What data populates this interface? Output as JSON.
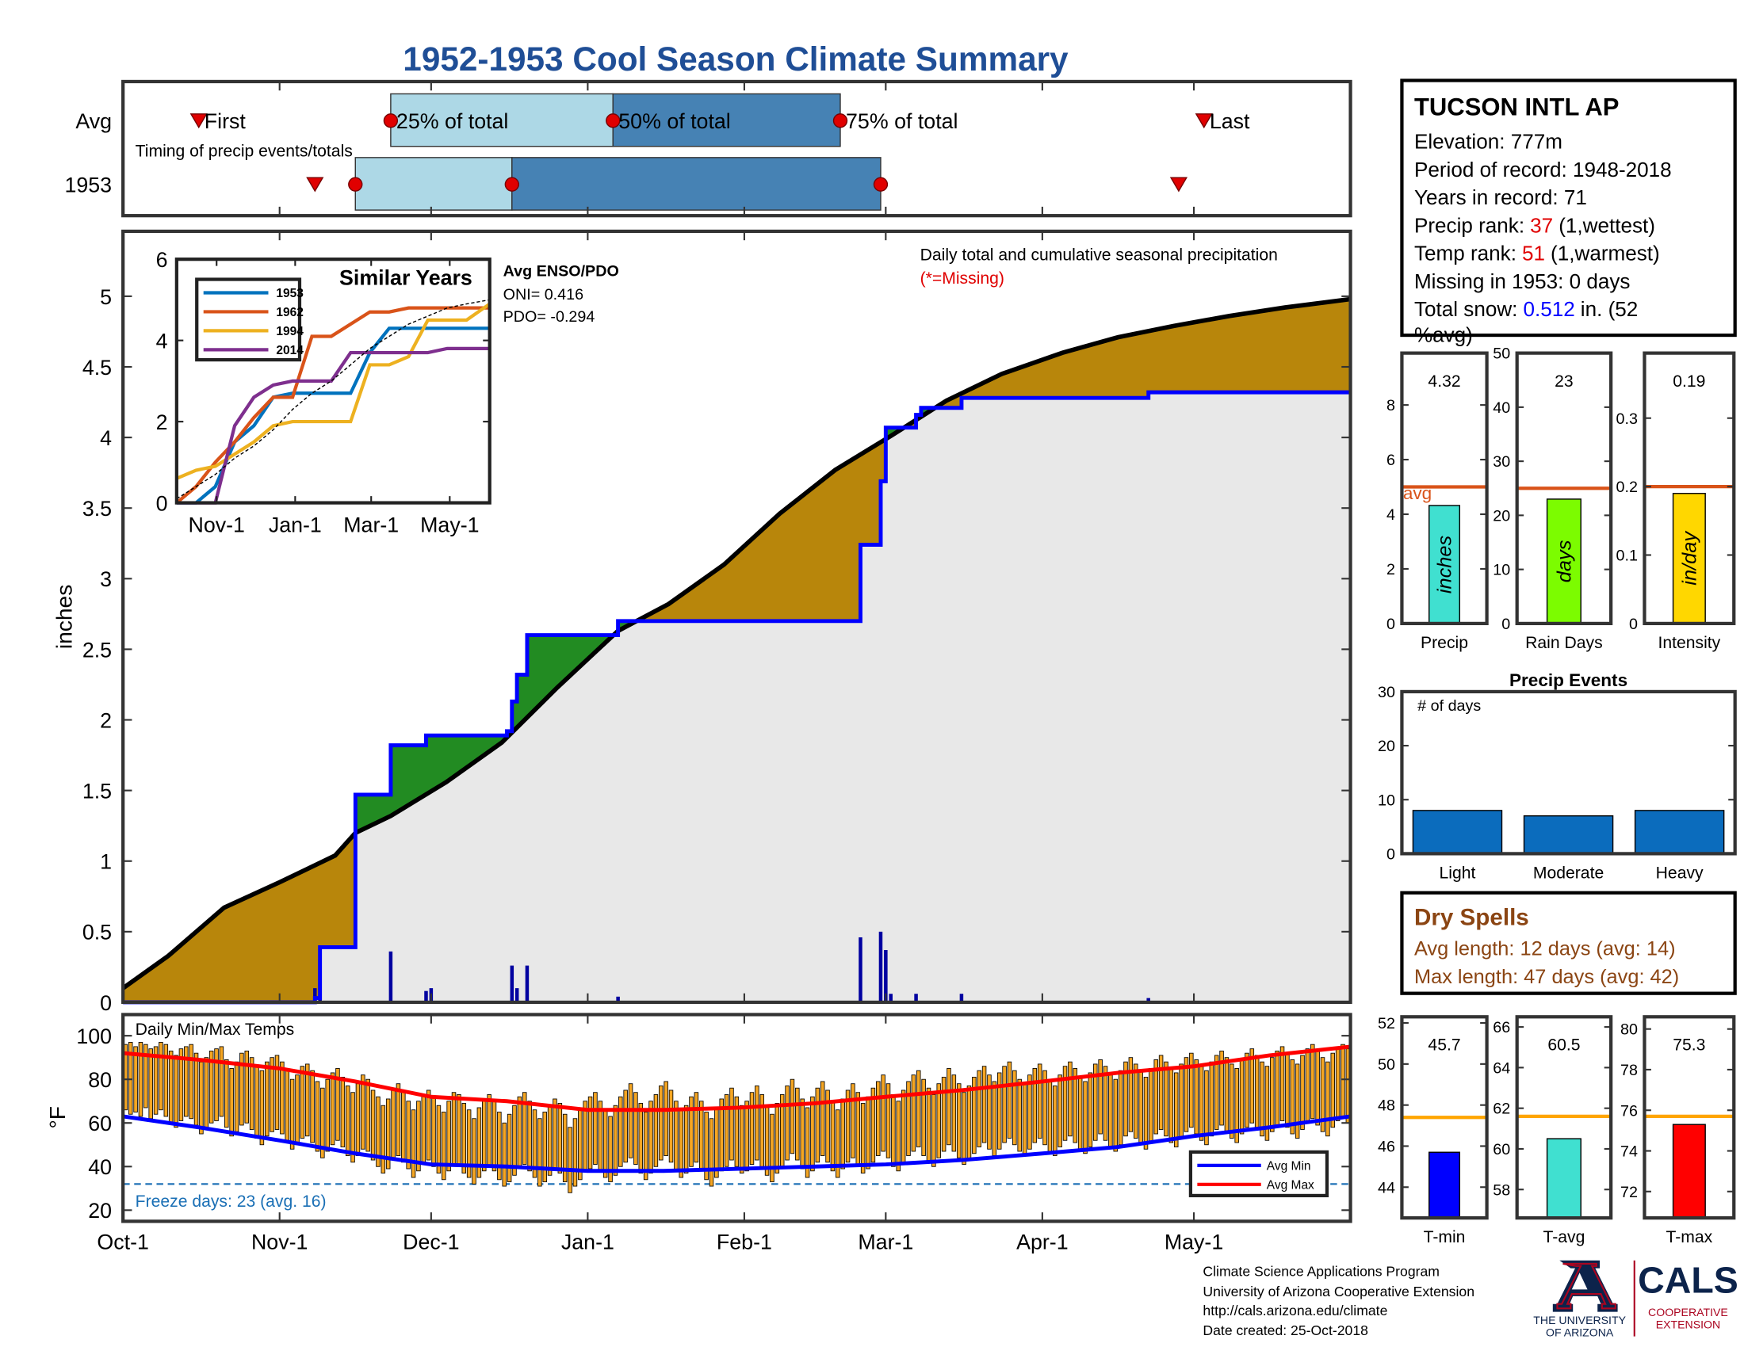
{
  "title": "1952-1953 Cool Season Climate Summary",
  "chart_data": [
    {
      "type": "timing",
      "xlim": [
        0,
        243
      ],
      "note": "Timing of precip events/totals",
      "marker_labels": {
        "first": "First",
        "p25": "25% of total",
        "p50": "50% of total",
        "p75": "75% of total",
        "last": "Last"
      },
      "rows": [
        {
          "label": "Avg",
          "first": 15,
          "p25": 53,
          "p50": 97,
          "p75": 142,
          "last": 214
        },
        {
          "label": "1953",
          "first": 38,
          "p25": 46,
          "p50": 77,
          "p75": 150,
          "last": 209
        }
      ]
    },
    {
      "type": "cumulative",
      "ylabel": "inches",
      "xlim": [
        0,
        243
      ],
      "ylim": [
        0,
        5.46
      ],
      "yticks": [
        0,
        0.5,
        1,
        1.5,
        2,
        2.5,
        3,
        3.5,
        4,
        4.5,
        5
      ],
      "annotation": "Daily total and cumulative seasonal precipitation",
      "missing_note": "(*=Missing)",
      "avg_cumulative": {
        "color": "#000000",
        "x": [
          0,
          9,
          20,
          31,
          42,
          46,
          53,
          64,
          75,
          86,
          98,
          108,
          119,
          130,
          141,
          152,
          163,
          174,
          186,
          197,
          208,
          219,
          230,
          243
        ],
        "values": [
          0.1,
          0.33,
          0.67,
          0.85,
          1.04,
          1.2,
          1.32,
          1.56,
          1.84,
          2.23,
          2.63,
          2.82,
          3.1,
          3.46,
          3.77,
          4.01,
          4.26,
          4.45,
          4.6,
          4.71,
          4.79,
          4.86,
          4.92,
          4.98
        ]
      },
      "cumulative_1953": {
        "color": "#0000ff",
        "x": [
          0,
          38,
          39,
          46,
          53,
          60,
          76,
          77,
          78,
          80,
          98,
          146,
          150,
          151,
          157,
          158,
          166,
          203
        ],
        "values": [
          0,
          0.03,
          0.39,
          1.47,
          1.82,
          1.89,
          1.92,
          2.13,
          2.32,
          2.6,
          2.7,
          3.24,
          3.69,
          4.07,
          4.16,
          4.21,
          4.28,
          4.32
        ]
      },
      "daily": {
        "color": "#0000a0",
        "x": [
          38,
          39,
          53,
          60,
          61,
          77,
          78,
          80,
          98,
          146,
          150,
          151,
          152,
          157,
          166,
          203
        ],
        "values": [
          0.1,
          0.3,
          0.36,
          0.08,
          0.1,
          0.26,
          0.1,
          0.26,
          0.04,
          0.46,
          0.5,
          0.37,
          0.06,
          0.06,
          0.06,
          0.03
        ]
      },
      "above_color": "#228b22",
      "below_color": "#b8860b",
      "base_color": "#e8e8e8"
    },
    {
      "type": "line",
      "title": "Similar Years",
      "xlim": [
        0,
        243
      ],
      "ylim": [
        0,
        6
      ],
      "yticks": [
        0,
        2,
        4,
        6
      ],
      "xticks": [
        {
          "value": 31,
          "label": "Nov-1"
        },
        {
          "value": 92,
          "label": "Jan-1"
        },
        {
          "value": 151,
          "label": "Mar-1"
        },
        {
          "value": 212,
          "label": "May-1"
        }
      ],
      "x": [
        0,
        15,
        30,
        45,
        60,
        75,
        90,
        105,
        120,
        135,
        150,
        165,
        180,
        195,
        210,
        225,
        243
      ],
      "series": [
        {
          "name": "1953",
          "color": "#0072bd",
          "values": [
            0,
            0,
            0.4,
            1.5,
            1.9,
            2.6,
            2.7,
            2.7,
            2.7,
            2.7,
            3.7,
            4.3,
            4.3,
            4.3,
            4.3,
            4.3,
            4.3
          ]
        },
        {
          "name": "1962",
          "color": "#d95319",
          "values": [
            0,
            0.4,
            1,
            1.5,
            2.1,
            2.6,
            2.6,
            4.1,
            4.1,
            4.4,
            4.7,
            4.7,
            4.8,
            4.8,
            4.8,
            4.8,
            4.8
          ]
        },
        {
          "name": "1994",
          "color": "#edb120",
          "values": [
            0.6,
            0.8,
            0.9,
            1.2,
            1.5,
            1.9,
            2,
            2,
            2,
            2,
            3.4,
            3.4,
            3.6,
            4.5,
            4.5,
            4.5,
            4.9
          ]
        },
        {
          "name": "2014",
          "color": "#7e2f8e",
          "values": [
            0,
            0,
            0,
            1.9,
            2.6,
            2.9,
            3,
            3,
            3,
            3.7,
            3.7,
            3.7,
            3.7,
            3.7,
            3.8,
            3.8,
            3.8
          ]
        }
      ],
      "avg_values": [
        0.1,
        0.4,
        0.7,
        1.1,
        1.4,
        1.8,
        2.3,
        2.7,
        3,
        3.4,
        3.8,
        4.1,
        4.4,
        4.6,
        4.8,
        4.9,
        5
      ],
      "enso": {
        "title": "Avg ENSO/PDO",
        "oni": "ONI= 0.416",
        "pdo": "PDO= -0.294"
      }
    },
    {
      "type": "temperature",
      "title": "Daily Min/Max Temps",
      "ylabel": "°F",
      "xlim": [
        0,
        243
      ],
      "ylim": [
        14.9,
        109.7
      ],
      "yticks": [
        20,
        40,
        60,
        80,
        100
      ],
      "xticks": [
        {
          "value": 0,
          "label": "Oct-1"
        },
        {
          "value": 31,
          "label": "Nov-1"
        },
        {
          "value": 61,
          "label": "Dec-1"
        },
        {
          "value": 92,
          "label": "Jan-1"
        },
        {
          "value": 123,
          "label": "Feb-1"
        },
        {
          "value": 151,
          "label": "Mar-1"
        },
        {
          "value": 182,
          "label": "Apr-1"
        },
        {
          "value": 212,
          "label": "May-1"
        }
      ],
      "bar_color": "#f5a623",
      "max": [
        96,
        97,
        95,
        97,
        96,
        94,
        95,
        97,
        96,
        93,
        91,
        94,
        95,
        96,
        92,
        88,
        90,
        93,
        94,
        95,
        89,
        85,
        88,
        92,
        93,
        90,
        86,
        84,
        88,
        90,
        91,
        88,
        85,
        80,
        82,
        86,
        87,
        84,
        79,
        76,
        80,
        83,
        85,
        81,
        77,
        74,
        78,
        82,
        80,
        75,
        72,
        68,
        71,
        76,
        78,
        74,
        70,
        66,
        70,
        73,
        75,
        72,
        68,
        65,
        70,
        74,
        73,
        69,
        66,
        62,
        67,
        71,
        73,
        70,
        65,
        60,
        64,
        68,
        72,
        74,
        70,
        66,
        62,
        65,
        68,
        71,
        69,
        64,
        58,
        62,
        66,
        70,
        72,
        74,
        70,
        66,
        63,
        68,
        72,
        75,
        78,
        74,
        69,
        65,
        70,
        73,
        77,
        79,
        75,
        70,
        66,
        68,
        72,
        74,
        70,
        65,
        62,
        67,
        71,
        73,
        76,
        72,
        68,
        70,
        74,
        77,
        73,
        68,
        64,
        69,
        73,
        77,
        80,
        76,
        71,
        67,
        72,
        76,
        79,
        75,
        70,
        66,
        71,
        75,
        78,
        74,
        69,
        72,
        76,
        79,
        82,
        78,
        73,
        70,
        75,
        79,
        82,
        84,
        80,
        76,
        73,
        78,
        81,
        85,
        82,
        78,
        74,
        77,
        81,
        84,
        86,
        82,
        79,
        83,
        86,
        88,
        84,
        80,
        78,
        82,
        85,
        87,
        84,
        80,
        77,
        82,
        86,
        88,
        85,
        81,
        79,
        83,
        87,
        89,
        86,
        82,
        80,
        84,
        88,
        90,
        87,
        84,
        81,
        85,
        89,
        91,
        88,
        85,
        83,
        87,
        90,
        92,
        89,
        86,
        84,
        88,
        91,
        93,
        90,
        87,
        85,
        89,
        92,
        94,
        91,
        88,
        86,
        90,
        93,
        95,
        92,
        89,
        87,
        91,
        94,
        96,
        93,
        90,
        88,
        92,
        95,
        96,
        94
      ],
      "min": [
        66,
        64,
        65,
        63,
        67,
        62,
        64,
        66,
        63,
        60,
        58,
        61,
        63,
        62,
        59,
        55,
        57,
        60,
        61,
        63,
        58,
        54,
        56,
        59,
        60,
        57,
        53,
        50,
        54,
        56,
        57,
        55,
        52,
        48,
        50,
        53,
        54,
        51,
        47,
        44,
        47,
        50,
        52,
        49,
        45,
        42,
        45,
        48,
        47,
        43,
        40,
        37,
        39,
        43,
        45,
        42,
        39,
        35,
        38,
        41,
        43,
        40,
        37,
        34,
        38,
        41,
        40,
        37,
        35,
        32,
        35,
        38,
        40,
        38,
        34,
        31,
        33,
        36,
        39,
        41,
        38,
        35,
        31,
        33,
        36,
        39,
        37,
        33,
        28,
        31,
        34,
        38,
        39,
        41,
        38,
        35,
        33,
        36,
        40,
        42,
        44,
        41,
        37,
        34,
        37,
        40,
        43,
        45,
        42,
        38,
        35,
        37,
        40,
        42,
        38,
        34,
        31,
        35,
        38,
        40,
        43,
        40,
        37,
        38,
        41,
        43,
        40,
        36,
        33,
        37,
        40,
        43,
        46,
        43,
        39,
        35,
        38,
        42,
        45,
        42,
        38,
        35,
        39,
        42,
        44,
        41,
        37,
        39,
        42,
        45,
        47,
        44,
        40,
        38,
        42,
        45,
        47,
        49,
        45,
        42,
        40,
        44,
        47,
        50,
        47,
        44,
        41,
        43,
        46,
        49,
        51,
        48,
        45,
        48,
        51,
        53,
        50,
        47,
        45,
        48,
        51,
        53,
        50,
        47,
        45,
        49,
        52,
        54,
        51,
        48,
        46,
        49,
        52,
        55,
        52,
        49,
        47,
        50,
        54,
        56,
        53,
        50,
        48,
        51,
        55,
        57,
        54,
        51,
        49,
        53,
        56,
        58,
        55,
        52,
        50,
        54,
        57,
        59,
        56,
        53,
        51,
        55,
        58,
        60,
        57,
        54,
        52,
        56,
        59,
        61,
        58,
        55,
        53,
        57,
        60,
        62,
        59,
        56,
        54,
        58,
        61,
        63,
        60
      ],
      "avg_x": [
        0,
        15,
        31,
        46,
        61,
        76,
        92,
        107,
        122,
        137,
        151,
        166,
        182,
        197,
        212,
        227,
        243
      ],
      "series": [
        {
          "name": "Avg Min",
          "color": "#0000ff",
          "values": [
            63,
            58,
            52,
            46,
            41,
            40,
            38,
            38,
            39,
            40,
            41,
            43,
            46,
            49,
            54,
            58,
            63
          ]
        },
        {
          "name": "Avg Max",
          "color": "#ff0000",
          "values": [
            92,
            89,
            85,
            79,
            72,
            70,
            66,
            66,
            67,
            69,
            72,
            75,
            79,
            83,
            86,
            91,
            95
          ]
        }
      ],
      "freeze": 32,
      "freeze_color": "#1a6fb5",
      "freeze_label": "Freeze days: 23 (avg. 16)"
    },
    {
      "type": "bar",
      "categories": [
        "Precip"
      ],
      "values": [
        4.32
      ],
      "color": "#40e0d0",
      "average": 5.0,
      "average_color": "#d95319",
      "average_label": "avg",
      "unit_label": "inches",
      "ylim": [
        0,
        9.9
      ],
      "yticks": [
        0,
        2,
        4,
        6,
        8
      ]
    },
    {
      "type": "bar",
      "categories": [
        "Rain Days"
      ],
      "values": [
        23
      ],
      "color": "#7cfc00",
      "average": 25,
      "average_color": "#d95319",
      "unit_label": "days",
      "ylim": [
        0,
        50
      ],
      "yticks": [
        0,
        10,
        20,
        30,
        40,
        50
      ]
    },
    {
      "type": "bar",
      "categories": [
        "Intensity"
      ],
      "values": [
        0.19
      ],
      "color": "#ffd700",
      "average": 0.2,
      "average_color": "#d95319",
      "unit_label": "in/day",
      "ylim": [
        0,
        0.395
      ],
      "yticks": [
        0,
        0.1,
        0.2,
        0.3
      ]
    },
    {
      "type": "bar",
      "title": "Precip Events",
      "ylabel": "# of days",
      "categories": [
        "Light",
        "Moderate",
        "Heavy"
      ],
      "values": [
        8,
        7,
        8
      ],
      "color": "#0b6cbd",
      "ylim": [
        0,
        30
      ],
      "yticks": [
        0,
        10,
        20,
        30
      ]
    },
    {
      "type": "bar",
      "categories": [
        "T-min"
      ],
      "values": [
        45.7
      ],
      "color": "#0000ff",
      "average": 47.4,
      "average_color": "#ffa500",
      "ylim": [
        42.5,
        52.3
      ],
      "yticks": [
        44,
        46,
        48,
        50,
        52
      ]
    },
    {
      "type": "bar",
      "categories": [
        "T-avg"
      ],
      "values": [
        60.5
      ],
      "color": "#40e0d0",
      "average": 61.6,
      "average_color": "#ffa500",
      "ylim": [
        56.6,
        66.5
      ],
      "yticks": [
        58,
        60,
        62,
        64,
        66
      ]
    },
    {
      "type": "bar",
      "categories": [
        "T-max"
      ],
      "values": [
        75.3
      ],
      "color": "#ff0000",
      "average": 75.7,
      "average_color": "#ffa500",
      "ylim": [
        70.7,
        80.6
      ],
      "yticks": [
        72,
        74,
        76,
        78,
        80
      ]
    }
  ],
  "station": {
    "name": "TUCSON INTL AP",
    "elevation": "Elevation: 777m",
    "period": "Period of record: 1948-2018",
    "years": "Years in record: 71",
    "precip_rank": {
      "label": "Precip rank:",
      "value": "37",
      "note": "(1,wettest)"
    },
    "temp_rank": {
      "label": "Temp rank:",
      "value": "51",
      "note": "(1,warmest)"
    },
    "missing": "Missing in 1953: 0 days",
    "snow": {
      "label": "Total snow:",
      "value": "0.512",
      "unit": "in. (52",
      "note": "%avg)"
    }
  },
  "dry_spells": {
    "title": "Dry Spells",
    "avg": "Avg length: 12 days (avg: 14)",
    "max": "Max length: 47 days (avg: 42)"
  },
  "footer": {
    "lines": [
      "Climate Science Applications Program",
      "University of Arizona Cooperative Extension",
      "http://cals.arizona.edu/climate",
      " Date created: 25-Oct-2018"
    ],
    "university": [
      "THE UNIVERSITY",
      "OF ARIZONA"
    ],
    "cals": "CALS",
    "extension": [
      "COOPERATIVE",
      "EXTENSION"
    ]
  }
}
